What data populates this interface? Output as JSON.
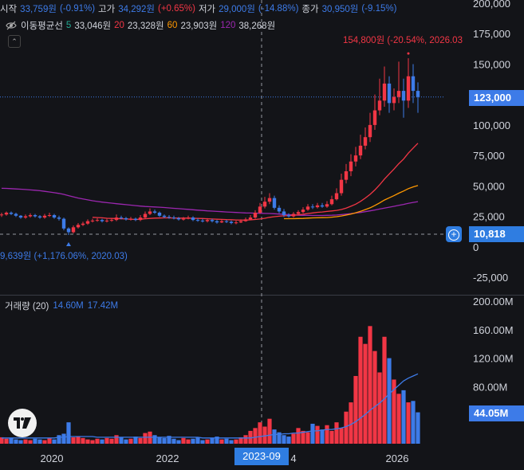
{
  "legend": {
    "open_label": "시작",
    "open_value": "33,759원",
    "open_pct": "(-0.91%)",
    "high_label": "고가",
    "high_value": "34,292원",
    "high_pct": "(+0.65%)",
    "low_label": "저가",
    "low_value": "29,000원",
    "low_pct": "(-14.88%)",
    "close_label": "종가",
    "close_value": "30,950원",
    "close_pct": "(-9.15%)"
  },
  "ma": {
    "title": "이동평균선",
    "p5": "5",
    "v5": "33,046원",
    "p20": "20",
    "v20": "23,328원",
    "p60": "60",
    "v60": "23,903원",
    "p120": "120",
    "v120": "38,268원"
  },
  "volume_legend": {
    "title": "거래량 (20)",
    "v1": "14.60M",
    "v2": "17.42M"
  },
  "price_axis": [
    "200,000",
    "175,000",
    "150,000",
    "125,000",
    "100,000",
    "75,000",
    "50,000",
    "25,000",
    "0",
    "-25,000"
  ],
  "volume_axis": [
    "200.00M",
    "160.00M",
    "120.00M",
    "80.00M"
  ],
  "time_axis": [
    "2020",
    "2022",
    "2023-09",
    "2026"
  ],
  "time_axis_partial": "4",
  "tags": {
    "price_last": "123,000",
    "price_cross": "10,818",
    "volume_last": "44.05M"
  },
  "notes": {
    "high": "154,800원 (-20.54%, 2026.03",
    "low": "9,639원 (+1,176.06%, 2020.03)"
  },
  "colors": {
    "up": "#f23645",
    "down": "#3d7be8",
    "ma5": "#22ab94",
    "ma20": "#f23645",
    "ma60": "#ff9800",
    "ma120": "#9c27b0",
    "accent": "#2f7de1"
  },
  "chart_data": {
    "type": "candlestick",
    "x_unit": "month",
    "x": [
      "2019-01",
      "2019-02",
      "2019-03",
      "2019-04",
      "2019-05",
      "2019-06",
      "2019-07",
      "2019-08",
      "2019-09",
      "2019-10",
      "2019-11",
      "2019-12",
      "2020-01",
      "2020-02",
      "2020-03",
      "2020-04",
      "2020-05",
      "2020-06",
      "2020-07",
      "2020-08",
      "2020-09",
      "2020-10",
      "2020-11",
      "2020-12",
      "2021-01",
      "2021-02",
      "2021-03",
      "2021-04",
      "2021-05",
      "2021-06",
      "2021-07",
      "2021-08",
      "2021-09",
      "2021-10",
      "2021-11",
      "2021-12",
      "2022-01",
      "2022-02",
      "2022-03",
      "2022-04",
      "2022-05",
      "2022-06",
      "2022-07",
      "2022-08",
      "2022-09",
      "2022-10",
      "2022-11",
      "2022-12",
      "2023-01",
      "2023-02",
      "2023-03",
      "2023-04",
      "2023-05",
      "2023-06",
      "2023-07",
      "2023-08",
      "2023-09",
      "2023-10",
      "2023-11",
      "2023-12",
      "2024-01",
      "2024-02",
      "2024-03",
      "2024-04",
      "2024-05",
      "2024-06",
      "2024-07",
      "2024-08",
      "2024-09",
      "2024-10",
      "2024-11",
      "2024-12",
      "2025-01",
      "2025-02",
      "2025-03",
      "2025-04",
      "2025-05",
      "2025-06",
      "2025-07",
      "2025-08",
      "2025-09",
      "2025-10",
      "2025-11",
      "2025-12",
      "2026-01",
      "2026-02",
      "2026-03",
      "2026-04"
    ],
    "open": [
      26000,
      26500,
      28000,
      27000,
      25500,
      24000,
      25000,
      26000,
      25000,
      24000,
      25500,
      26000,
      24000,
      23000,
      15000,
      12000,
      16000,
      18000,
      19000,
      21000,
      21500,
      22000,
      21000,
      21500,
      22000,
      24000,
      23500,
      22500,
      23000,
      22000,
      24000,
      27000,
      29000,
      28000,
      25500,
      24500,
      24000,
      23500,
      22500,
      23000,
      24000,
      22000,
      21500,
      21000,
      22000,
      21000,
      20000,
      21000,
      20500,
      19500,
      20000,
      21000,
      22500,
      24000,
      28000,
      33000,
      37000,
      40000,
      32000,
      29000,
      26000,
      25000,
      27000,
      28500,
      30500,
      33000,
      32500,
      34000,
      33000,
      35000,
      39000,
      44000,
      55000,
      62000,
      70000,
      75000,
      83000,
      90000,
      100000,
      112000,
      120000,
      134000,
      118000,
      123000,
      128000,
      120000,
      140000,
      128000
    ],
    "close": [
      26500,
      28000,
      27000,
      25500,
      24000,
      25000,
      26000,
      25000,
      24000,
      25500,
      26000,
      24000,
      23000,
      15000,
      12000,
      16000,
      18000,
      19000,
      21000,
      21500,
      22000,
      21000,
      21500,
      22000,
      24000,
      23500,
      22500,
      23000,
      22000,
      24000,
      27000,
      29000,
      28000,
      25500,
      24500,
      24000,
      23500,
      22500,
      23000,
      24000,
      22000,
      21500,
      21000,
      22000,
      21000,
      20000,
      21000,
      20500,
      19500,
      20000,
      21000,
      22500,
      24000,
      28000,
      33000,
      37000,
      40000,
      32000,
      29000,
      26000,
      25000,
      27000,
      28500,
      30500,
      33000,
      32500,
      34000,
      33000,
      35000,
      39000,
      44000,
      55000,
      62000,
      70000,
      75000,
      83000,
      90000,
      100000,
      112000,
      120000,
      134000,
      118000,
      123000,
      128000,
      120000,
      140000,
      128000,
      123000
    ],
    "high": [
      28000,
      29000,
      29000,
      28000,
      26000,
      26500,
      27500,
      27000,
      26000,
      27000,
      28000,
      27000,
      25500,
      24000,
      16000,
      17500,
      19500,
      20500,
      22500,
      23000,
      23500,
      23000,
      23000,
      23500,
      26500,
      25500,
      24500,
      24500,
      24000,
      26000,
      29000,
      31500,
      30500,
      29000,
      26500,
      26000,
      25500,
      24500,
      24500,
      25500,
      25000,
      23500,
      23000,
      23500,
      23000,
      22000,
      22500,
      22000,
      21500,
      21500,
      22500,
      24000,
      26000,
      30000,
      36000,
      41000,
      44000,
      42000,
      34000,
      31000,
      27500,
      28500,
      30000,
      32500,
      35000,
      35000,
      36000,
      36000,
      37500,
      42000,
      48000,
      60000,
      68000,
      76000,
      82000,
      92000,
      98000,
      110000,
      125000,
      138000,
      148000,
      140000,
      130000,
      152000,
      138000,
      154800,
      150000,
      135000
    ],
    "low": [
      24500,
      25500,
      26000,
      24500,
      23000,
      23000,
      24000,
      24000,
      23000,
      23000,
      24500,
      23000,
      21500,
      13500,
      9639,
      11000,
      15000,
      17000,
      18000,
      20000,
      20500,
      20000,
      20000,
      20500,
      21000,
      22500,
      21500,
      21500,
      21000,
      21000,
      23000,
      26000,
      27000,
      24500,
      23500,
      23000,
      22500,
      21500,
      21500,
      22500,
      21000,
      20500,
      20000,
      20000,
      20000,
      19000,
      19500,
      19500,
      18500,
      18500,
      19500,
      20500,
      22000,
      23000,
      27000,
      31500,
      35000,
      30500,
      27500,
      24500,
      24000,
      24000,
      26000,
      27500,
      29500,
      31000,
      31500,
      32000,
      32000,
      34000,
      38000,
      42000,
      52000,
      58000,
      66000,
      72000,
      80000,
      86000,
      96000,
      108000,
      115000,
      110000,
      112000,
      118000,
      106000,
      114000,
      118000,
      110000
    ],
    "ma20": [
      null,
      null,
      null,
      null,
      null,
      null,
      null,
      null,
      null,
      null,
      null,
      null,
      null,
      null,
      null,
      null,
      null,
      null,
      null,
      24200,
      24000,
      23800,
      23400,
      23300,
      23200,
      23000,
      22800,
      22600,
      22400,
      22600,
      23000,
      23300,
      23500,
      23600,
      23700,
      23700,
      23600,
      23500,
      23500,
      23500,
      23400,
      23300,
      23200,
      23000,
      22800,
      22600,
      22500,
      22300,
      22200,
      22000,
      21900,
      21900,
      22100,
      22400,
      22800,
      23400,
      24200,
      24700,
      25100,
      25400,
      25600,
      25900,
      26300,
      26700,
      27300,
      27800,
      28300,
      28600,
      29000,
      29400,
      29900,
      30600,
      31800,
      33300,
      35000,
      37300,
      40000,
      43000,
      46700,
      50900,
      55600,
      59800,
      63800,
      68200,
      72000,
      76900,
      81000,
      85000
    ],
    "ma60": [
      null,
      null,
      null,
      null,
      null,
      null,
      null,
      null,
      null,
      null,
      null,
      null,
      null,
      null,
      null,
      null,
      null,
      null,
      null,
      null,
      null,
      null,
      null,
      null,
      null,
      null,
      null,
      null,
      null,
      null,
      null,
      null,
      null,
      null,
      null,
      null,
      null,
      null,
      null,
      null,
      null,
      null,
      null,
      null,
      null,
      null,
      null,
      null,
      null,
      null,
      null,
      null,
      null,
      null,
      null,
      null,
      null,
      null,
      null,
      23100,
      23100,
      23100,
      23200,
      23300,
      23500,
      23700,
      23800,
      23900,
      24000,
      24300,
      24700,
      25300,
      26000,
      26900,
      27900,
      29100,
      30500,
      32000,
      33900,
      36000,
      38400,
      40200,
      42000,
      44000,
      45800,
      47700,
      49200,
      50300
    ],
    "ma120": [
      48000,
      47900,
      47700,
      47500,
      47300,
      47000,
      46700,
      46400,
      46000,
      45500,
      45000,
      44400,
      43800,
      43000,
      42000,
      41000,
      40000,
      39200,
      38500,
      37800,
      37200,
      36700,
      36200,
      35800,
      35400,
      35000,
      34600,
      34200,
      33800,
      33400,
      33100,
      32900,
      32700,
      32500,
      32200,
      31900,
      31600,
      31300,
      31000,
      30700,
      30400,
      30100,
      29800,
      29500,
      29300,
      29000,
      28800,
      28600,
      28400,
      28200,
      28000,
      27800,
      27700,
      27600,
      27500,
      27400,
      27300,
      27100,
      26900,
      26600,
      26400,
      26100,
      25900,
      25800,
      25800,
      25700,
      25700,
      25700,
      25800,
      25900,
      26100,
      26400,
      26800,
      27200,
      27700,
      28200,
      28800,
      29500,
      30200,
      31000,
      31800,
      32500,
      33200,
      34000,
      34800,
      35700,
      36400,
      37100
    ],
    "volume": [
      9,
      7,
      8,
      6,
      5,
      6,
      5,
      7,
      6,
      5,
      8,
      6,
      12,
      14,
      30,
      9,
      10,
      8,
      6,
      5,
      7,
      6,
      8,
      7,
      12,
      9,
      6,
      7,
      10,
      8,
      15,
      17,
      12,
      9,
      8,
      11,
      7,
      5,
      8,
      6,
      7,
      9,
      5,
      6,
      8,
      10,
      6,
      7,
      5,
      6,
      9,
      12,
      18,
      22,
      30,
      24,
      35,
      20,
      16,
      12,
      10,
      14,
      22,
      18,
      16,
      28,
      25,
      20,
      26,
      18,
      30,
      22,
      45,
      58,
      95,
      150,
      140,
      165,
      130,
      100,
      150,
      120,
      90,
      70,
      75,
      58,
      60,
      44.05
    ],
    "volume_ma20": [
      8,
      8,
      8,
      8,
      8,
      8,
      8,
      8,
      8,
      8,
      8,
      8,
      9,
      9,
      10,
      10,
      10,
      10,
      10,
      10,
      9,
      9,
      9,
      9,
      9,
      9,
      9,
      9,
      9,
      9,
      9,
      9,
      9,
      9,
      9,
      9,
      9,
      9,
      9,
      9,
      9,
      9,
      8,
      8,
      8,
      8,
      8,
      8,
      8,
      8,
      8,
      8,
      8,
      9,
      10,
      11,
      12,
      13,
      13,
      14,
      14,
      15,
      15,
      16,
      17,
      18,
      18,
      19,
      20,
      20,
      21,
      22,
      24,
      27,
      31,
      36,
      41,
      47,
      52,
      57,
      63,
      70,
      76,
      82,
      88,
      92,
      95,
      98
    ],
    "price_ylim": [
      -35000,
      205000
    ],
    "volume_ylim": [
      0,
      200
    ],
    "volume_unit": "M"
  }
}
